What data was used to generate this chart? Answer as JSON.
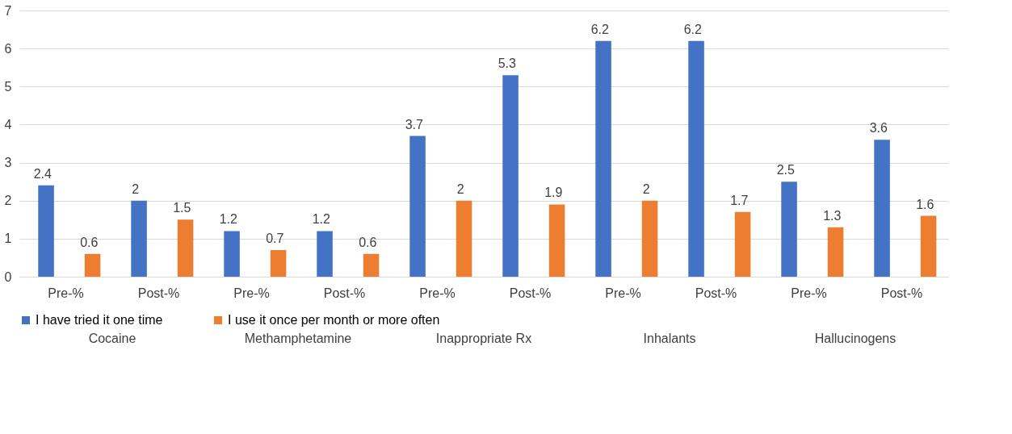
{
  "chart_data": {
    "type": "bar",
    "categories": [
      "Pre-%",
      "Post-%",
      "Pre-%",
      "Post-%",
      "Pre-%",
      "Post-%",
      "Pre-%",
      "Post-%",
      "Pre-%",
      "Post-%"
    ],
    "series": [
      {
        "name": "I have tried it one time",
        "color": "#4472c4",
        "values": [
          2.4,
          2,
          1.2,
          1.2,
          3.7,
          5.3,
          6.2,
          6.2,
          2.5,
          3.6
        ]
      },
      {
        "name": "I use it once per month or more often",
        "color": "#ed7d31",
        "values": [
          0.6,
          1.5,
          0.7,
          0.6,
          2,
          1.9,
          2,
          1.7,
          1.3,
          1.6
        ]
      }
    ],
    "annotations": [
      "Cocaine",
      "Methamphetamine",
      "Inappropriate Rx",
      "Inhalants",
      "Hallucinogens"
    ],
    "ylim": [
      0,
      7
    ],
    "yticks": [
      0,
      1,
      2,
      3,
      4,
      5,
      6,
      7
    ],
    "grid": "y",
    "legend": "bottom",
    "data_labels": true
  }
}
